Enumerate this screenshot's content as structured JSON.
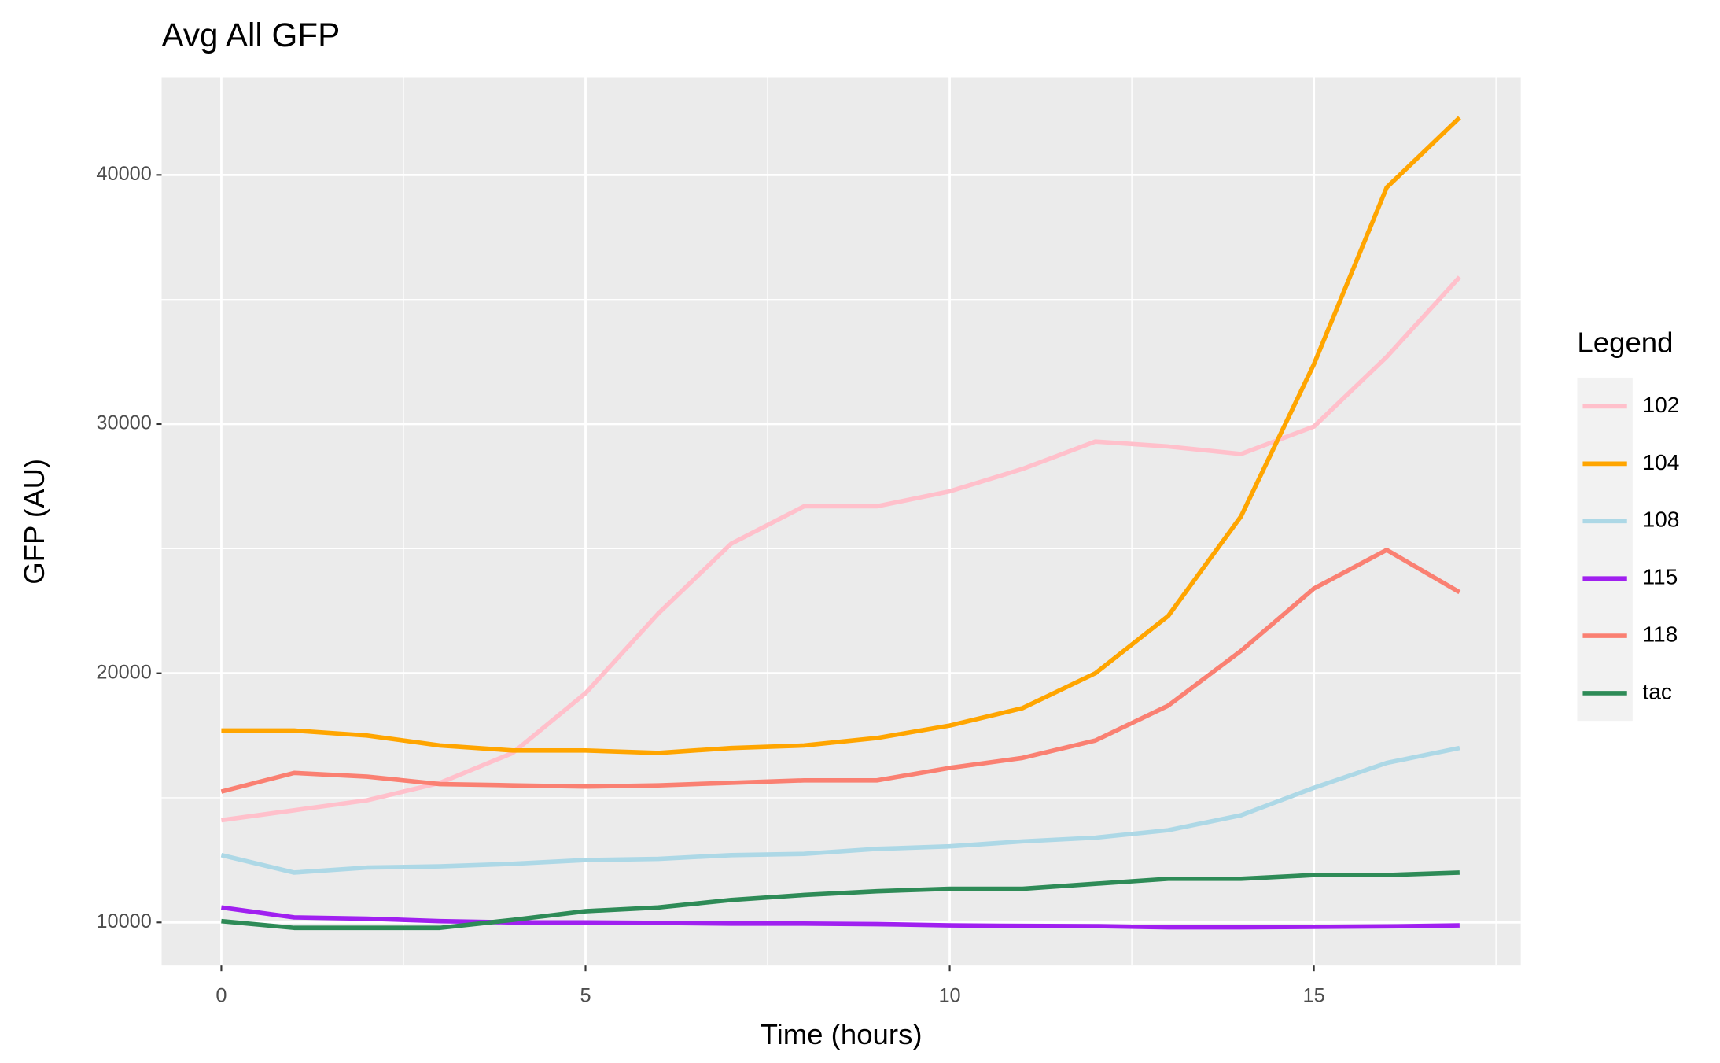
{
  "chart_data": {
    "type": "line",
    "title": "Avg All GFP",
    "x_label": "Time (hours)",
    "y_label": "GFP (AU)",
    "legend_title": "Legend",
    "legend_position": "right",
    "grid": true,
    "x": [
      0,
      1,
      2,
      3,
      4,
      5,
      6,
      7,
      8,
      9,
      10,
      11,
      12,
      13,
      14,
      15,
      16,
      17
    ],
    "xlim": [
      -0.82,
      17.84
    ],
    "xticks": [
      0,
      5,
      10,
      15
    ],
    "x_minor_grid": [
      2.5,
      7.5,
      12.5,
      17.5
    ],
    "ylim": [
      8267,
      43911
    ],
    "yticks": [
      10000,
      20000,
      30000,
      40000
    ],
    "y_minor_grid": [
      15000,
      25000,
      35000
    ],
    "series": [
      {
        "name": "102",
        "color": "#FFC0CB",
        "values": [
          14100,
          14500,
          14900,
          15600,
          16800,
          19200,
          22400,
          25200,
          26700,
          26700,
          27300,
          28200,
          29300,
          29100,
          28800,
          29900,
          32700,
          35900
        ]
      },
      {
        "name": "104",
        "color": "#FFA500",
        "values": [
          17700,
          17700,
          17500,
          17100,
          16900,
          16900,
          16800,
          17000,
          17100,
          17400,
          17900,
          18600,
          20000,
          22300,
          26300,
          32400,
          39500,
          42300
        ]
      },
      {
        "name": "108",
        "color": "#ADD8E6",
        "values": [
          12700,
          12000,
          12200,
          12250,
          12350,
          12500,
          12550,
          12700,
          12750,
          12950,
          13050,
          13250,
          13400,
          13700,
          14300,
          15400,
          16400,
          17000
        ]
      },
      {
        "name": "115",
        "color": "#A020F0",
        "values": [
          10600,
          10200,
          10150,
          10050,
          10000,
          10000,
          9980,
          9950,
          9950,
          9930,
          9880,
          9860,
          9850,
          9800,
          9800,
          9820,
          9840,
          9880
        ]
      },
      {
        "name": "118",
        "color": "#FA8072",
        "values": [
          15250,
          16000,
          15850,
          15550,
          15500,
          15450,
          15500,
          15600,
          15700,
          15700,
          16200,
          16600,
          17300,
          18700,
          20900,
          23400,
          24950,
          23250
        ]
      },
      {
        "name": "tac",
        "color": "#2E8B57",
        "values": [
          10050,
          9780,
          9780,
          9780,
          10100,
          10450,
          10600,
          10900,
          11100,
          11250,
          11350,
          11350,
          11550,
          11750,
          11750,
          11900,
          11900,
          12000
        ]
      }
    ]
  }
}
